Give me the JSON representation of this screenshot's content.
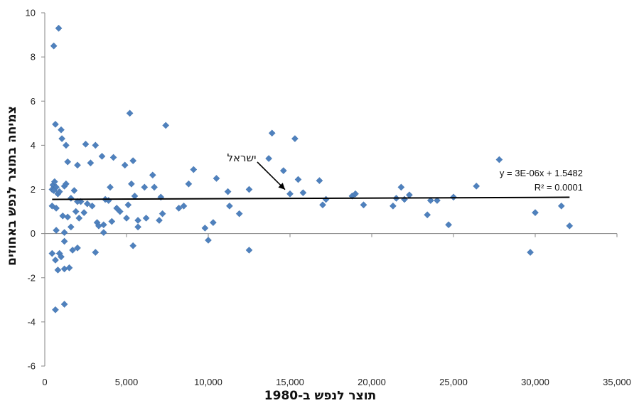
{
  "chart_data": {
    "type": "scatter",
    "xlabel": "תוצר לנפש ב-1980",
    "ylabel": "צמיחה בתוצר לנפש באחוזים",
    "xlim": [
      0,
      35000
    ],
    "ylim": [
      -6,
      10
    ],
    "x_ticks": [
      "0",
      "5,000",
      "10,000",
      "15,000",
      "20,000",
      "25,000",
      "30,000",
      "35,000"
    ],
    "y_ticks": [
      "-6",
      "-4",
      "-2",
      "0",
      "2",
      "4",
      "6",
      "8",
      "10"
    ],
    "marker_color": "#4F81BD",
    "trendline": {
      "slope": 3e-06,
      "intercept": 1.5482,
      "equation": "y = 3E-06x + 1.5482",
      "r_squared": "R² = 0.0001",
      "color": "#000000"
    },
    "annotation": {
      "text": "ישראל",
      "x": 15000,
      "y": 1.8
    },
    "points": [
      [
        550,
        8.5
      ],
      [
        850,
        9.3
      ],
      [
        5200,
        5.45
      ],
      [
        7400,
        4.9
      ],
      [
        13900,
        4.55
      ],
      [
        15300,
        4.3
      ],
      [
        650,
        4.95
      ],
      [
        1000,
        4.7
      ],
      [
        1050,
        4.3
      ],
      [
        1300,
        4.0
      ],
      [
        2500,
        4.05
      ],
      [
        3100,
        4.0
      ],
      [
        4200,
        3.45
      ],
      [
        1400,
        3.25
      ],
      [
        2000,
        3.1
      ],
      [
        2800,
        3.2
      ],
      [
        3500,
        3.5
      ],
      [
        4900,
        3.1
      ],
      [
        5400,
        3.3
      ],
      [
        6600,
        2.65
      ],
      [
        9100,
        2.9
      ],
      [
        10500,
        2.5
      ],
      [
        13700,
        3.4
      ],
      [
        14600,
        2.85
      ],
      [
        27800,
        3.35
      ],
      [
        500,
        2.2
      ],
      [
        450,
        2.0
      ],
      [
        600,
        2.35
      ],
      [
        700,
        2.1
      ],
      [
        550,
        1.95
      ],
      [
        800,
        1.8
      ],
      [
        900,
        1.9
      ],
      [
        1200,
        2.15
      ],
      [
        1600,
        1.6
      ],
      [
        1800,
        1.95
      ],
      [
        2200,
        1.45
      ],
      [
        3700,
        1.55
      ],
      [
        4000,
        2.1
      ],
      [
        5300,
        2.25
      ],
      [
        5500,
        1.7
      ],
      [
        6100,
        2.1
      ],
      [
        6700,
        2.1
      ],
      [
        7100,
        1.65
      ],
      [
        8800,
        2.25
      ],
      [
        11200,
        1.9
      ],
      [
        12500,
        2.0
      ],
      [
        15000,
        1.8
      ],
      [
        15500,
        2.45
      ],
      [
        15800,
        1.85
      ],
      [
        16800,
        2.4
      ],
      [
        17200,
        1.55
      ],
      [
        18800,
        1.7
      ],
      [
        19000,
        1.8
      ],
      [
        21500,
        1.6
      ],
      [
        21800,
        2.1
      ],
      [
        22300,
        1.75
      ],
      [
        25000,
        1.65
      ],
      [
        26400,
        2.15
      ],
      [
        450,
        1.25
      ],
      [
        700,
        1.15
      ],
      [
        1100,
        0.8
      ],
      [
        1400,
        0.75
      ],
      [
        1900,
        1.0
      ],
      [
        2400,
        0.95
      ],
      [
        2900,
        1.25
      ],
      [
        3200,
        0.5
      ],
      [
        3600,
        0.4
      ],
      [
        4100,
        0.55
      ],
      [
        4600,
        1.0
      ],
      [
        5100,
        1.3
      ],
      [
        5700,
        0.6
      ],
      [
        6200,
        0.7
      ],
      [
        7000,
        0.6
      ],
      [
        7200,
        0.9
      ],
      [
        8200,
        1.15
      ],
      [
        8500,
        1.25
      ],
      [
        9800,
        0.25
      ],
      [
        10300,
        0.5
      ],
      [
        11300,
        1.25
      ],
      [
        11900,
        0.9
      ],
      [
        17000,
        1.3
      ],
      [
        19500,
        1.3
      ],
      [
        21300,
        1.25
      ],
      [
        23400,
        0.85
      ],
      [
        23600,
        1.5
      ],
      [
        24700,
        0.4
      ],
      [
        30000,
        0.95
      ],
      [
        31600,
        1.25
      ],
      [
        32100,
        0.35
      ],
      [
        700,
        0.15
      ],
      [
        1200,
        0.05
      ],
      [
        1600,
        0.3
      ],
      [
        2100,
        0.7
      ],
      [
        3300,
        0.35
      ],
      [
        3600,
        0.05
      ],
      [
        5000,
        0.7
      ],
      [
        5700,
        0.3
      ],
      [
        450,
        -0.9
      ],
      [
        650,
        -1.2
      ],
      [
        900,
        -0.9
      ],
      [
        1000,
        -1.05
      ],
      [
        1200,
        -0.35
      ],
      [
        1700,
        -0.75
      ],
      [
        2000,
        -0.65
      ],
      [
        3100,
        -0.85
      ],
      [
        5400,
        -0.55
      ],
      [
        10000,
        -0.3
      ],
      [
        12500,
        -0.75
      ],
      [
        29700,
        -0.85
      ],
      [
        800,
        -1.65
      ],
      [
        1200,
        -1.6
      ],
      [
        1500,
        -1.55
      ],
      [
        650,
        -3.45
      ],
      [
        1200,
        -3.2
      ],
      [
        1300,
        2.25
      ],
      [
        2000,
        1.45
      ],
      [
        2600,
        1.35
      ],
      [
        3900,
        1.5
      ],
      [
        4400,
        1.15
      ],
      [
        22000,
        1.55
      ],
      [
        24000,
        1.5
      ]
    ]
  }
}
